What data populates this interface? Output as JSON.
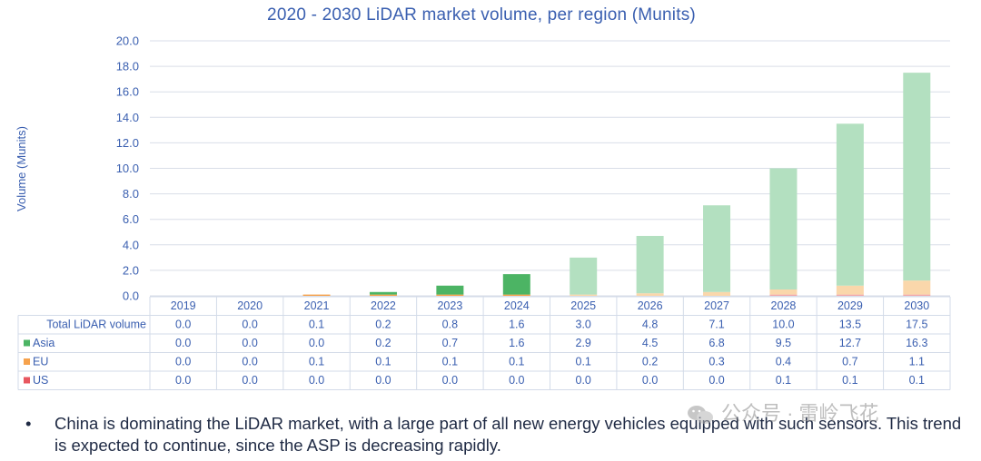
{
  "chart_data": {
    "type": "bar",
    "stacked": true,
    "title": "2020 - 2030 LiDAR market volume, per region (Munits)",
    "ylabel": "Volume (Munits)",
    "xlabel": "",
    "ylim": [
      0,
      20
    ],
    "yticks": [
      "0.0",
      "2.0",
      "4.0",
      "6.0",
      "8.0",
      "10.0",
      "12.0",
      "14.0",
      "16.0",
      "18.0",
      "20.0"
    ],
    "grid": true,
    "categories": [
      "2019",
      "2020",
      "2021",
      "2022",
      "2023",
      "2024",
      "2025",
      "2026",
      "2027",
      "2028",
      "2029",
      "2030"
    ],
    "total_label": "Total LiDAR volume",
    "totals": [
      0.0,
      0.0,
      0.1,
      0.2,
      0.8,
      1.6,
      3.0,
      4.8,
      7.1,
      10.0,
      13.5,
      17.5
    ],
    "total_strings": [
      "0.0",
      "0.0",
      "0.1",
      "0.2",
      "0.8",
      "1.6",
      "3.0",
      "4.8",
      "7.1",
      "10.0",
      "13.5",
      "17.5"
    ],
    "series": [
      {
        "name": "Asia",
        "values": [
          0.0,
          0.0,
          0.0,
          0.2,
          0.7,
          1.6,
          2.9,
          4.5,
          6.8,
          9.5,
          12.7,
          16.3
        ],
        "labels": [
          "0.0",
          "0.0",
          "0.0",
          "0.2",
          "0.7",
          "1.6",
          "2.9",
          "4.5",
          "6.8",
          "9.5",
          "12.7",
          "16.3"
        ],
        "color": "#4cb464",
        "color_forecast": "#b3e0c0"
      },
      {
        "name": "EU",
        "values": [
          0.0,
          0.0,
          0.1,
          0.1,
          0.1,
          0.1,
          0.1,
          0.2,
          0.3,
          0.4,
          0.7,
          1.1
        ],
        "labels": [
          "0.0",
          "0.0",
          "0.1",
          "0.1",
          "0.1",
          "0.1",
          "0.1",
          "0.2",
          "0.3",
          "0.4",
          "0.7",
          "1.1"
        ],
        "color": "#f6a24c",
        "color_forecast": "#fad7ab"
      },
      {
        "name": "US",
        "values": [
          0.0,
          0.0,
          0.0,
          0.0,
          0.0,
          0.0,
          0.0,
          0.0,
          0.0,
          0.1,
          0.1,
          0.1
        ],
        "labels": [
          "0.0",
          "0.0",
          "0.0",
          "0.0",
          "0.0",
          "0.0",
          "0.0",
          "0.0",
          "0.0",
          "0.1",
          "0.1",
          "0.1"
        ],
        "color": "#e8575f",
        "color_forecast": "#f2a8ab"
      }
    ],
    "forecast_from": "2025",
    "legend_placement": "data-table-left"
  },
  "bullet": {
    "marker": "•",
    "text": "China is dominating the LiDAR market, with a large part of all new energy vehicles equipped with such sensors. This trend is expected to continue, since the ASP is decreasing rapidly."
  },
  "watermark": {
    "text": "公众号 · 雷岭飞花",
    "icon": "wechat-icon"
  }
}
